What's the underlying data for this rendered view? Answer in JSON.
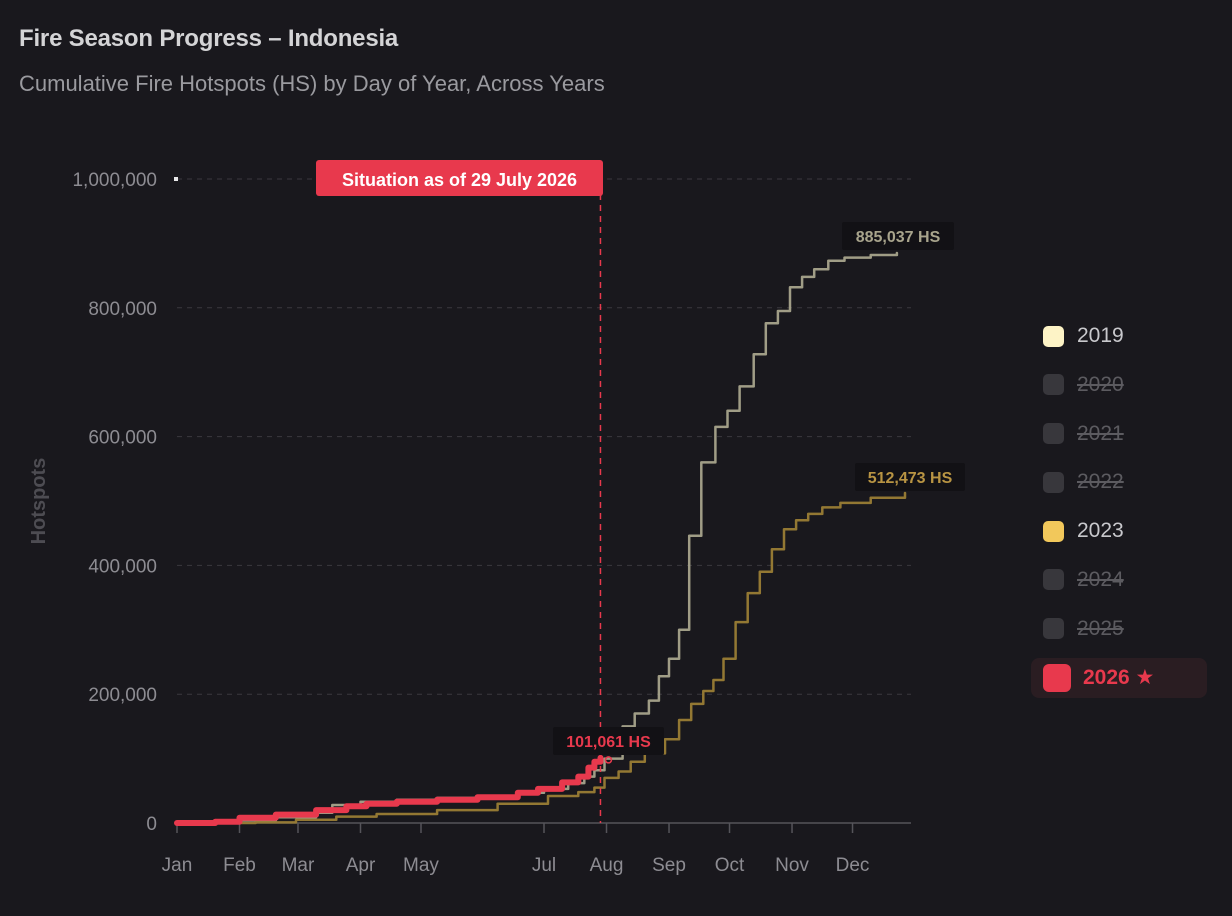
{
  "header": {
    "title": "Fire Season Progress – Indonesia",
    "subtitle": "Cumulative Fire Hotspots (HS) by Day of Year, Across Years"
  },
  "colors": {
    "y2019": "#a8a48c",
    "y2023": "#9a7d35",
    "y2026": "#e8394d",
    "grid": "#3a393f",
    "axis_text": "#8d8c92"
  },
  "chart_data": {
    "type": "line",
    "title": "Fire Season Progress – Indonesia",
    "subtitle": "Cumulative Fire Hotspots (HS) by Day of Year, Across Years",
    "xlabel": "",
    "ylabel": "Hotspots",
    "x_unit": "day of year",
    "xlim": [
      1,
      365
    ],
    "ylim": [
      0,
      1000000
    ],
    "y_ticks": [
      0,
      200000,
      400000,
      600000,
      800000,
      1000000
    ],
    "y_tick_labels": [
      "0",
      "200,000",
      "400,000",
      "600,000",
      "800,000",
      "1,000,000"
    ],
    "x_ticks": [
      {
        "day": 1,
        "label": "Jan"
      },
      {
        "day": 32,
        "label": "Feb"
      },
      {
        "day": 61,
        "label": "Mar"
      },
      {
        "day": 92,
        "label": "Apr"
      },
      {
        "day": 122,
        "label": "May"
      },
      {
        "day": 183,
        "label": "Jul"
      },
      {
        "day": 214,
        "label": "Aug"
      },
      {
        "day": 245,
        "label": "Sep"
      },
      {
        "day": 275,
        "label": "Oct"
      },
      {
        "day": 306,
        "label": "Nov"
      },
      {
        "day": 336,
        "label": "Dec"
      }
    ],
    "grid": true,
    "legend_position": "right",
    "marker": {
      "day": 211,
      "label": "Situation as of 29 July 2026"
    },
    "series": [
      {
        "name": "2019",
        "color_key": "y2019",
        "end_label": "885,037 HS",
        "points": [
          [
            1,
            0
          ],
          [
            20,
            1000
          ],
          [
            32,
            4000
          ],
          [
            50,
            9000
          ],
          [
            70,
            16000
          ],
          [
            78,
            28000
          ],
          [
            92,
            33000
          ],
          [
            110,
            36000
          ],
          [
            130,
            39000
          ],
          [
            150,
            42000
          ],
          [
            170,
            47000
          ],
          [
            183,
            53000
          ],
          [
            195,
            62000
          ],
          [
            203,
            72000
          ],
          [
            208,
            82000
          ],
          [
            213,
            100000
          ],
          [
            222,
            150000
          ],
          [
            228,
            170000
          ],
          [
            235,
            190000
          ],
          [
            240,
            228000
          ],
          [
            245,
            255000
          ],
          [
            250,
            300000
          ],
          [
            255,
            446000
          ],
          [
            261,
            560000
          ],
          [
            268,
            615000
          ],
          [
            274,
            640000
          ],
          [
            280,
            678000
          ],
          [
            287,
            728000
          ],
          [
            293,
            776000
          ],
          [
            299,
            795000
          ],
          [
            305,
            832000
          ],
          [
            311,
            848000
          ],
          [
            317,
            860000
          ],
          [
            324,
            873000
          ],
          [
            332,
            878000
          ],
          [
            345,
            882000
          ],
          [
            358,
            885037
          ]
        ]
      },
      {
        "name": "2023",
        "color_key": "y2023",
        "end_label": "512,473 HS",
        "points": [
          [
            1,
            0
          ],
          [
            40,
            1000
          ],
          [
            60,
            5000
          ],
          [
            80,
            10000
          ],
          [
            100,
            14000
          ],
          [
            130,
            20000
          ],
          [
            160,
            30000
          ],
          [
            185,
            42000
          ],
          [
            200,
            48000
          ],
          [
            208,
            55000
          ],
          [
            213,
            70000
          ],
          [
            220,
            80000
          ],
          [
            226,
            95000
          ],
          [
            233,
            108000
          ],
          [
            243,
            130000
          ],
          [
            250,
            160000
          ],
          [
            256,
            185000
          ],
          [
            262,
            205000
          ],
          [
            267,
            222000
          ],
          [
            272,
            255000
          ],
          [
            278,
            312000
          ],
          [
            284,
            357000
          ],
          [
            290,
            390000
          ],
          [
            296,
            425000
          ],
          [
            302,
            456000
          ],
          [
            308,
            470000
          ],
          [
            314,
            480000
          ],
          [
            321,
            490000
          ],
          [
            330,
            497000
          ],
          [
            345,
            505000
          ],
          [
            362,
            512473
          ]
        ]
      },
      {
        "name": "2026",
        "color_key": "y2026",
        "end_label": "101,061 HS",
        "points": [
          [
            1,
            0
          ],
          [
            20,
            2000
          ],
          [
            32,
            8000
          ],
          [
            50,
            13000
          ],
          [
            70,
            20000
          ],
          [
            85,
            26000
          ],
          [
            95,
            30000
          ],
          [
            110,
            33000
          ],
          [
            130,
            36000
          ],
          [
            150,
            40000
          ],
          [
            170,
            47000
          ],
          [
            180,
            53000
          ],
          [
            192,
            63000
          ],
          [
            200,
            72000
          ],
          [
            205,
            86000
          ],
          [
            208,
            95000
          ],
          [
            211,
            101061
          ]
        ]
      }
    ]
  },
  "legend": {
    "items": [
      {
        "label": "2019",
        "color": "#fdf3c6",
        "state": "on"
      },
      {
        "label": "2020",
        "color": "#38373c",
        "state": "off"
      },
      {
        "label": "2021",
        "color": "#38373c",
        "state": "off"
      },
      {
        "label": "2022",
        "color": "#38373c",
        "state": "off"
      },
      {
        "label": "2023",
        "color": "#f2c85b",
        "state": "on"
      },
      {
        "label": "2024",
        "color": "#38373c",
        "state": "off"
      },
      {
        "label": "2025",
        "color": "#38373c",
        "state": "off"
      },
      {
        "label": "2026 ★",
        "color": "#e8394d",
        "state": "active"
      }
    ]
  }
}
